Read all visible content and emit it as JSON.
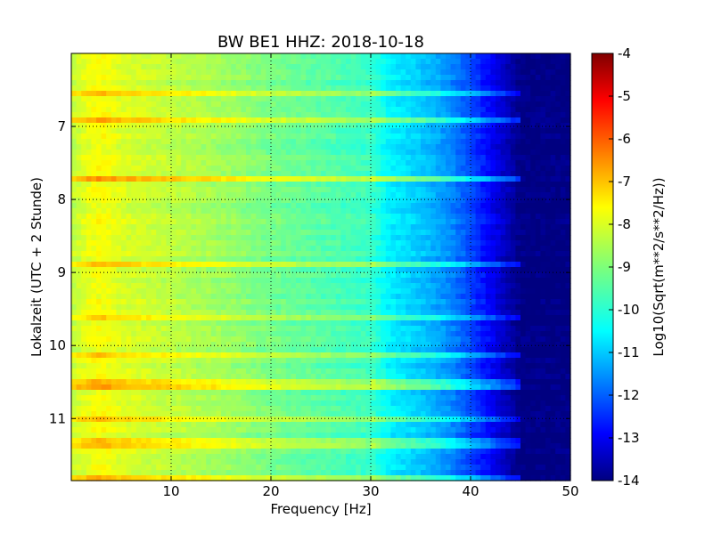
{
  "chart_data": {
    "type": "heatmap",
    "title": "BW BE1 HHZ: 2018-10-18",
    "xlabel": "Frequency [Hz]",
    "ylabel": "Lokalzeit (UTC + 2 Stunde)",
    "xlim": [
      0,
      50
    ],
    "ylim": [
      6.0,
      11.85
    ],
    "y_inverted": true,
    "x_ticks": [
      "10",
      "20",
      "30",
      "40",
      "50"
    ],
    "x_tick_values": [
      10,
      20,
      30,
      40,
      50
    ],
    "y_ticks": [
      "7",
      "8",
      "9",
      "10",
      "11"
    ],
    "y_tick_values": [
      7,
      8,
      9,
      10,
      11
    ],
    "grid": true,
    "colormap": "jet",
    "colorbar": {
      "label": "Log10(Sqrt(m**2/s**2/Hz))",
      "range": [
        -14,
        -4
      ],
      "ticks": [
        "-4",
        "-5",
        "-6",
        "-7",
        "-8",
        "-9",
        "-10",
        "-11",
        "-12",
        "-13",
        "-14"
      ],
      "tick_values": [
        -4,
        -5,
        -6,
        -7,
        -8,
        -9,
        -10,
        -11,
        -12,
        -13,
        -14
      ]
    },
    "spectral_profile": {
      "frequency_hz": [
        0,
        2,
        3,
        5,
        10,
        15,
        20,
        25,
        30,
        32,
        35,
        38,
        40,
        42,
        44,
        45,
        50
      ],
      "log_amplitude": [
        -8.4,
        -7.9,
        -7.8,
        -8.1,
        -8.4,
        -8.7,
        -9.1,
        -9.4,
        -9.7,
        -10.4,
        -10.8,
        -11.4,
        -12.1,
        -12.8,
        -13.6,
        -14,
        -14
      ]
    },
    "strong_rows_local_time": [
      6.5,
      6.85,
      7.7,
      8.85,
      9.6,
      10.1,
      10.5,
      10.95,
      11.3,
      11.75
    ]
  }
}
